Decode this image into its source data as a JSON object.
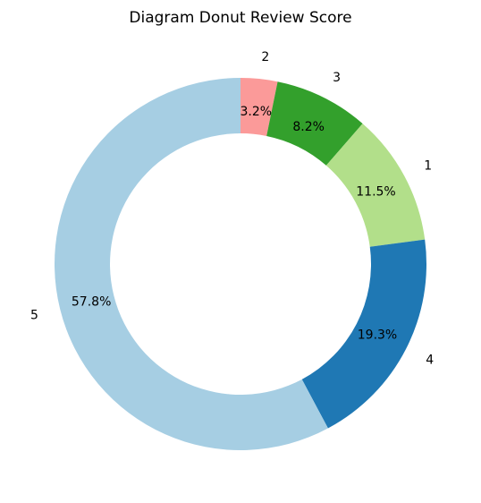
{
  "chart_data": {
    "type": "pie",
    "variant": "donut",
    "title": "Diagram Donut Review Score",
    "slices": [
      {
        "label": "2",
        "value": 3.2,
        "pct_text": "3.2%",
        "color": "#fb9a99"
      },
      {
        "label": "3",
        "value": 8.2,
        "pct_text": "8.2%",
        "color": "#33a02c"
      },
      {
        "label": "1",
        "value": 11.5,
        "pct_text": "11.5%",
        "color": "#b2df8a"
      },
      {
        "label": "4",
        "value": 19.3,
        "pct_text": "19.3%",
        "color": "#1f78b4"
      },
      {
        "label": "5",
        "value": 57.8,
        "pct_text": "57.8%",
        "color": "#a6cee3"
      }
    ],
    "start_angle_deg": 90,
    "direction": "clockwise",
    "legend": "none"
  }
}
